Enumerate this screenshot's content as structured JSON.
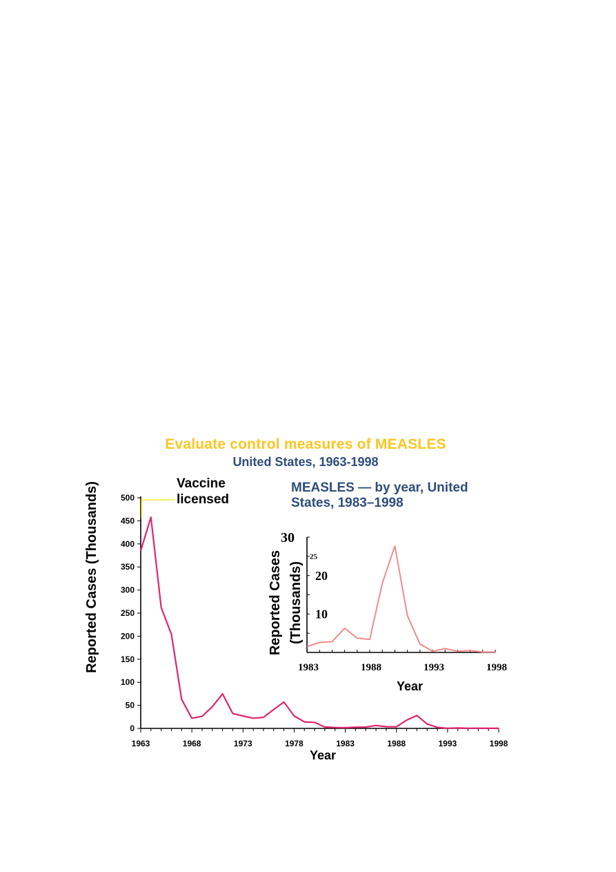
{
  "title": "Evaluate control measures of MEASLES",
  "subtitle": "United States, 1963-1998",
  "annotation": "Vaccine licensed",
  "annotation_line1": "Vaccine",
  "annotation_line2": "licensed",
  "colors": {
    "title": "#f9c623",
    "subtitle": "#2e4d7b",
    "main_line": "#e0246e",
    "inset_line": "#f28a8a",
    "annotation_bracket": "#f0e000"
  },
  "chart_data": [
    {
      "type": "line",
      "title": "",
      "xlabel": "Year",
      "ylabel": "Reported Cases (Thousands)",
      "xlim": [
        1963,
        1998
      ],
      "ylim": [
        0,
        500
      ],
      "x_ticks": [
        "1963",
        "1968",
        "1973",
        "1978",
        "1983",
        "1988",
        "1993",
        "1998"
      ],
      "y_ticks": [
        "0",
        "50",
        "100",
        "150",
        "200",
        "250",
        "300",
        "350",
        "400",
        "450",
        "500"
      ],
      "grid": false,
      "x": [
        1963,
        1964,
        1965,
        1966,
        1967,
        1968,
        1969,
        1970,
        1971,
        1972,
        1973,
        1974,
        1975,
        1976,
        1977,
        1978,
        1979,
        1980,
        1981,
        1982,
        1983,
        1984,
        1985,
        1986,
        1987,
        1988,
        1989,
        1990,
        1991,
        1992,
        1993,
        1994,
        1995,
        1996,
        1997,
        1998
      ],
      "series": [
        {
          "values": [
            385,
            458,
            262,
            204,
            63,
            22,
            26,
            47,
            75,
            32,
            27,
            22,
            24,
            41,
            57,
            27,
            14,
            13,
            3,
            2,
            1.5,
            2.6,
            2.8,
            6.3,
            3.7,
            3.4,
            18,
            28,
            9.6,
            2.2,
            0.3,
            1,
            0.3,
            0.5,
            0.1,
            0.1
          ]
        }
      ],
      "annotation": {
        "text": "Vaccine licensed",
        "x": 1963
      }
    },
    {
      "type": "line",
      "title": "MEASLES — by year, United States, 1983–1998",
      "xlabel": "Year",
      "ylabel": "Reported Cases (Thousands)",
      "xlim": [
        1983,
        1998
      ],
      "ylim": [
        0,
        30
      ],
      "x_ticks": [
        "1983",
        "1988",
        "1993",
        "1998"
      ],
      "y_ticks": [
        "10",
        "20",
        "25",
        "30"
      ],
      "grid": false,
      "x": [
        1983,
        1984,
        1985,
        1986,
        1987,
        1988,
        1989,
        1990,
        1991,
        1992,
        1993,
        1994,
        1995,
        1996,
        1997,
        1998
      ],
      "series": [
        {
          "values": [
            1.5,
            2.6,
            2.8,
            6.3,
            3.7,
            3.4,
            18,
            27.7,
            9.6,
            2.2,
            0.3,
            1,
            0.3,
            0.5,
            0.1,
            0.1
          ]
        }
      ]
    }
  ]
}
